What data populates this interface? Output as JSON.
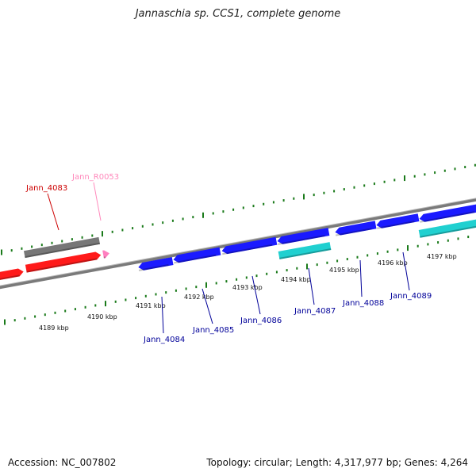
{
  "title": "Jannaschia sp. CCS1, complete genome",
  "footer": {
    "accession": "Accession: NC_007802",
    "summary": "Topology: circular; Length: 4,317,977 bp; Genes: 4,264"
  },
  "colors": {
    "forward_cds": "#ff1a1a",
    "reverse_cds": "#1a1aff",
    "forward_rna": "#ff7fbf",
    "reverse_rna": "#20d0d0",
    "gene_block": "#777777",
    "backbone": "#888888",
    "ticks": "#1a7a1a"
  },
  "ticks": [
    {
      "label": "4189 kbp",
      "kbp": 4189
    },
    {
      "label": "4190 kbp",
      "kbp": 4190
    },
    {
      "label": "4191 kbp",
      "kbp": 4191
    },
    {
      "label": "4192 kbp",
      "kbp": 4192
    },
    {
      "label": "4193 kbp",
      "kbp": 4193
    },
    {
      "label": "4194 kbp",
      "kbp": 4194
    },
    {
      "label": "4195 kbp",
      "kbp": 4195
    },
    {
      "label": "4196 kbp",
      "kbp": 4196
    },
    {
      "label": "4197 kbp",
      "kbp": 4197
    }
  ],
  "genes": [
    {
      "name": "Jann_4083",
      "strand": "forward",
      "type": "CDS",
      "color": "#cc0000",
      "label_side": "top"
    },
    {
      "name": "Jann_R0053",
      "strand": "forward",
      "type": "RNA",
      "color": "#ff88bb",
      "label_side": "top"
    },
    {
      "name": "Jann_4084",
      "strand": "reverse",
      "type": "CDS",
      "color": "#000099",
      "label_side": "bottom"
    },
    {
      "name": "Jann_4085",
      "strand": "reverse",
      "type": "CDS",
      "color": "#000099",
      "label_side": "bottom"
    },
    {
      "name": "Jann_4086",
      "strand": "reverse",
      "type": "CDS",
      "color": "#000099",
      "label_side": "bottom"
    },
    {
      "name": "Jann_4087",
      "strand": "reverse",
      "type": "CDS",
      "color": "#000099",
      "label_side": "bottom"
    },
    {
      "name": "Jann_4088",
      "strand": "reverse",
      "type": "CDS",
      "color": "#000099",
      "label_side": "bottom"
    },
    {
      "name": "Jann_4089",
      "strand": "reverse",
      "type": "CDS",
      "color": "#000099",
      "label_side": "bottom"
    }
  ]
}
